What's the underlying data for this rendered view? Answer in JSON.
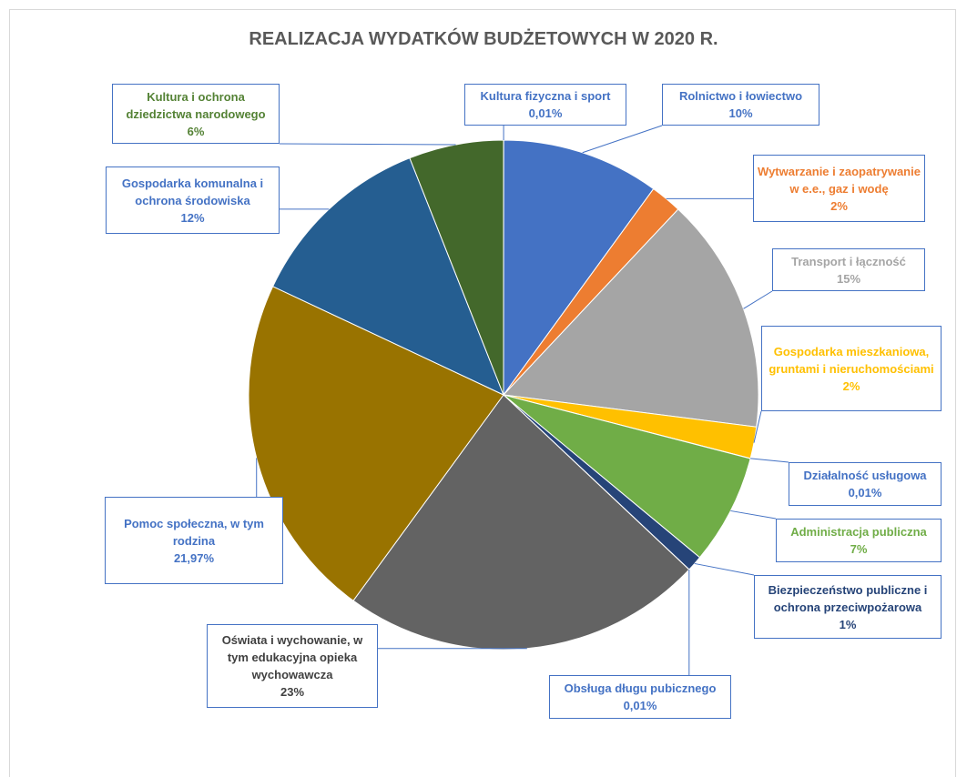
{
  "chart_data": {
    "type": "pie",
    "title": "REALIZACJA WYDATKÓW BUDŻETOWYCH W 2020 R.",
    "categories": [
      "Kultura fizyczna i sport",
      "Rolnictwo i łowiectwo",
      "Wytwarzanie i zaopatrywanie w e.e., gaz i wodę",
      "Transport i łączność",
      "Gospodarka mieszkaniowa, gruntami i nieruchomościami",
      "Działalność usługowa",
      "Administracja publiczna",
      "Biezpieczeństwo publiczne i ochrona przeciwpożarowa",
      "Obsługa długu pubicznego",
      "Oświata i wychowanie, w tym edukacyjna opieka wychowawcza",
      "Pomoc społeczna, w tym rodzina",
      "Gospodarka komunalna i ochrona środowiska",
      "Kultura i ochrona dziedzictwa narodowego"
    ],
    "values": [
      0.01,
      10,
      2,
      15,
      2,
      0.01,
      7,
      1,
      0.01,
      23,
      21.97,
      12,
      6
    ],
    "value_labels": [
      "0,01%",
      "10%",
      "2%",
      "15%",
      "2%",
      "0,01%",
      "7%",
      "1%",
      "0,01%",
      "23%",
      "21,97%",
      "12%",
      "6%"
    ],
    "colors": [
      "#5b9bd5",
      "#4472c4",
      "#ed7d31",
      "#a5a5a5",
      "#ffc000",
      "#5b9bd5",
      "#70ad47",
      "#264478",
      "#9e480e",
      "#636363",
      "#997300",
      "#255e91",
      "#43682b"
    ],
    "label_colors": [
      "#4472c4",
      "#4472c4",
      "#ed7d31",
      "#a5a5a5",
      "#ffc000",
      "#4472c4",
      "#70ad47",
      "#264478",
      "#4472c4",
      "#404040",
      "#4472c4",
      "#4472c4",
      "#548235"
    ]
  }
}
